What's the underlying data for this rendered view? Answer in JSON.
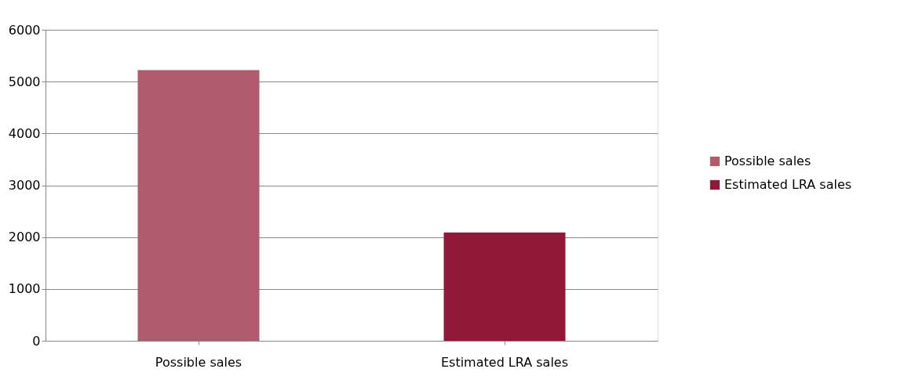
{
  "chart_data": {
    "type": "bar",
    "categories": [
      "Possible sales",
      "Estimated LRA sales"
    ],
    "series": [
      {
        "name": "Possible sales",
        "color": "#b05b6e",
        "values": [
          5220,
          null
        ]
      },
      {
        "name": "Estimated LRA sales",
        "color": "#921838",
        "values": [
          null,
          2090
        ]
      }
    ],
    "ylim": [
      0,
      6000
    ],
    "yticks": [
      0,
      1000,
      2000,
      3000,
      4000,
      5000,
      6000
    ],
    "grid": "y",
    "legend": "right"
  }
}
